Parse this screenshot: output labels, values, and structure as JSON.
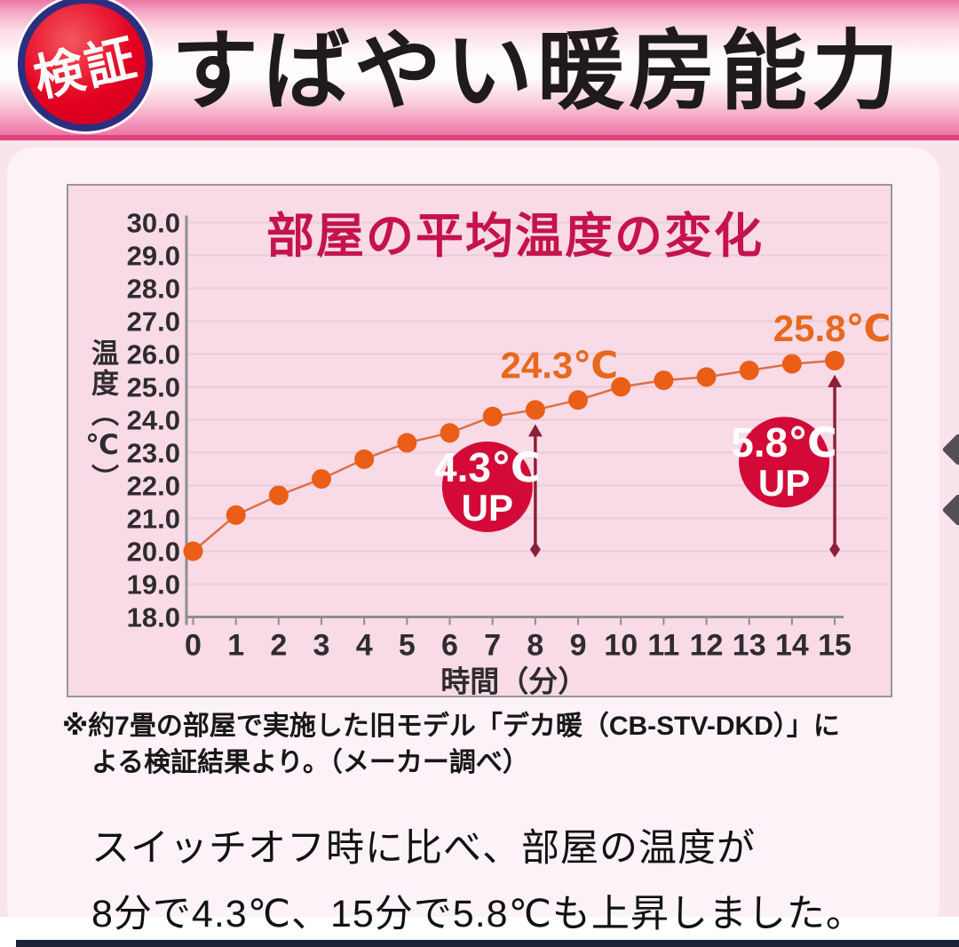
{
  "header": {
    "badge": "検証",
    "title": "すばやい暖房能力"
  },
  "footnote": {
    "line1": "※約7畳の部屋で実施した旧モデル「デカ暖（CB-STV-DKD）」に",
    "line2": "よる検証結果より。（メーカー調べ）"
  },
  "summary": {
    "line1": "スイッチオフ時に比べ、部屋の温度が",
    "line2": "8分で4.3℃、15分で5.8℃も上昇しました。"
  },
  "colors": {
    "badge_red": "#e30021",
    "badge_ring_navy": "#2b2f7e",
    "header_pink": "#ee74a4",
    "chart_title_red": "#c5134b",
    "line_orange": "#dd7046",
    "point_orange": "#ea5e17",
    "callout_crimson": "#d30a37",
    "arrow_maroon": "#8c2038",
    "panel_pink": "#f8dbe7",
    "bottom_navy": "#1c2238"
  },
  "chart_data": {
    "type": "line",
    "title": "部屋の平均温度の変化",
    "xlabel": "時間（分）",
    "ylabel": "温度（℃）",
    "x": [
      0,
      1,
      2,
      3,
      4,
      5,
      6,
      7,
      8,
      9,
      10,
      11,
      12,
      13,
      14,
      15
    ],
    "series": [
      {
        "name": "部屋の平均温度",
        "values": [
          20.0,
          21.1,
          21.7,
          22.2,
          22.8,
          23.3,
          23.6,
          24.1,
          24.3,
          24.6,
          25.0,
          25.2,
          25.3,
          25.5,
          25.7,
          25.8
        ]
      }
    ],
    "xlim": [
      0,
      15
    ],
    "ylim": [
      18.0,
      30.0
    ],
    "ytick_step": 1.0,
    "ytick_format": "one_decimal",
    "grid": true,
    "legend_position": "none",
    "line_color": "#dd7046",
    "point_color": "#ea5e17",
    "annotations": [
      {
        "text": "24.3℃",
        "at_x": 8,
        "value": 24.3,
        "color": "#e8681c"
      },
      {
        "text": "25.8℃",
        "at_x": 15,
        "value": 25.8,
        "color": "#e8681c"
      }
    ],
    "callouts": [
      {
        "label_value": "4.3℃",
        "label_sub": "UP",
        "at_x": 8,
        "from_value": 20.0,
        "to_value": 24.3,
        "circle_color": "#d30a37",
        "arrow_color": "#8c2038"
      },
      {
        "label_value": "5.8℃",
        "label_sub": "UP",
        "at_x": 15,
        "from_value": 20.0,
        "to_value": 25.8,
        "circle_color": "#d30a37",
        "arrow_color": "#8c2038"
      }
    ]
  }
}
